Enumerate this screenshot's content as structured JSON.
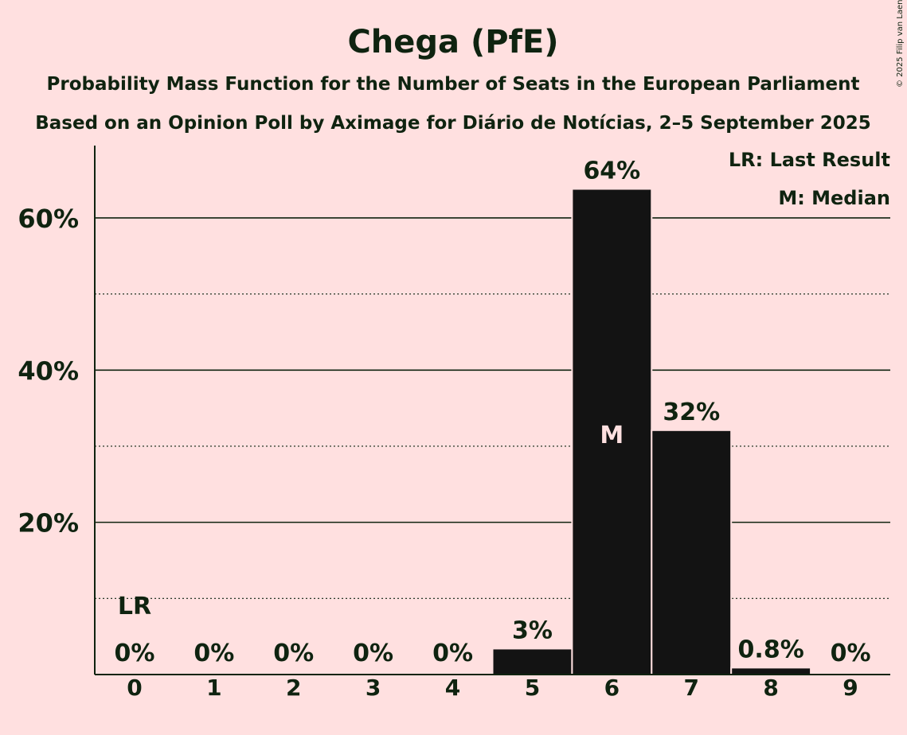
{
  "chart_data": {
    "type": "bar",
    "title": "Chega (PfE)",
    "subtitle": "Probability Mass Function for the Number of Seats in the European Parliament",
    "subtitle2": "Based on an Opinion Poll by Aximage for Diário de Notícias, 2–5 September 2025",
    "categories": [
      "0",
      "1",
      "2",
      "3",
      "4",
      "5",
      "6",
      "7",
      "8",
      "9"
    ],
    "values": [
      0,
      0,
      0,
      0,
      0,
      3.3,
      63.7,
      32.0,
      0.8,
      0
    ],
    "value_labels": [
      "0%",
      "0%",
      "0%",
      "0%",
      "0%",
      "3%",
      "64%",
      "32%",
      "0.8%",
      "0%"
    ],
    "ylim": [
      0,
      69.5
    ],
    "yticks": [
      {
        "value": 20,
        "label": "20%"
      },
      {
        "value": 40,
        "label": "40%"
      },
      {
        "value": 60,
        "label": "60%"
      }
    ],
    "dotted_gridlines": [
      10,
      30,
      50
    ],
    "last_result_index": 0,
    "last_result_marker": "LR",
    "median_index": 6,
    "median_marker": "M",
    "legend": [
      "LR: Last Result",
      "M: Median"
    ],
    "legend_position": "top-right",
    "bar_color": "#131313",
    "background": "#ffe0e0",
    "text_color": "#0f2310",
    "copyright": "© 2025 Filip van Laenen"
  }
}
